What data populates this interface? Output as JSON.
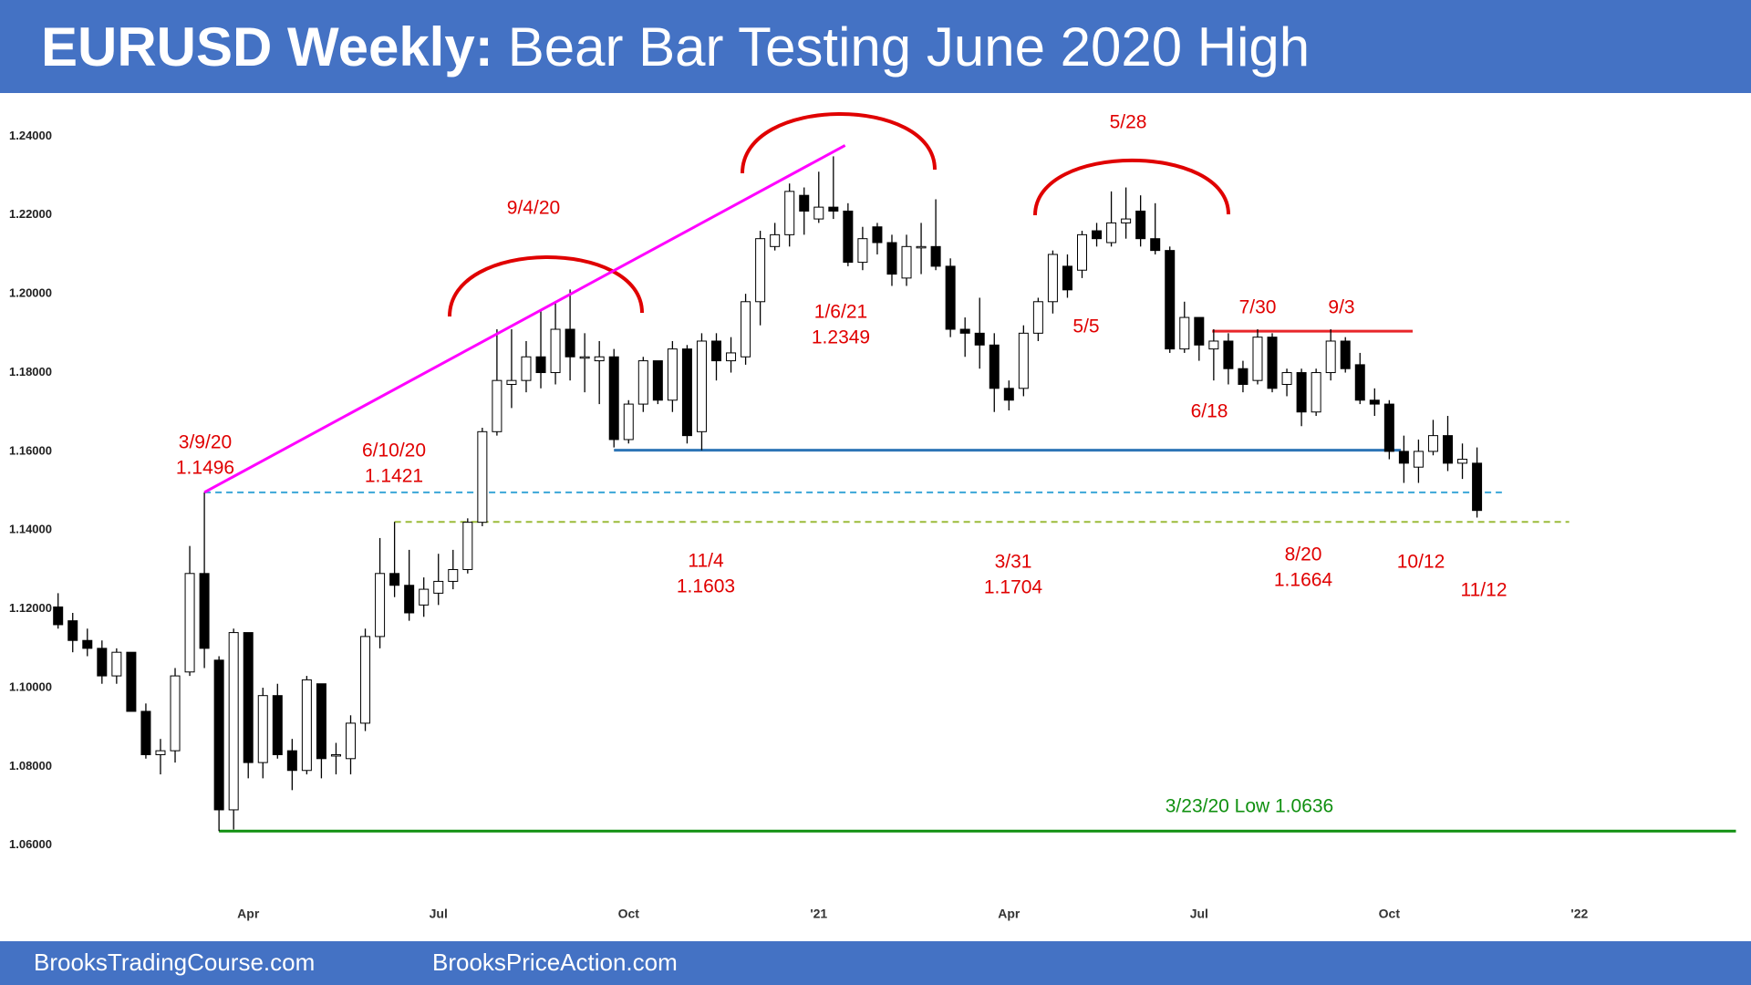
{
  "chart_data": {
    "type": "candlestick",
    "title": [
      "EURUSD Weekly:",
      "Bear Bar Testing June 2020 High"
    ],
    "footer": [
      "BrooksTradingCourse.com",
      "BrooksPriceAction.com"
    ],
    "categories": [
      null,
      null,
      null,
      null,
      null,
      null,
      null,
      null,
      null,
      null,
      null,
      null,
      null,
      "Apr",
      null,
      null,
      null,
      null,
      null,
      null,
      null,
      null,
      null,
      null,
      null,
      null,
      "Jul",
      null,
      null,
      null,
      null,
      null,
      null,
      null,
      null,
      null,
      null,
      null,
      null,
      "Oct",
      null,
      null,
      null,
      null,
      null,
      null,
      null,
      null,
      null,
      null,
      null,
      null,
      "'21",
      null,
      null,
      null,
      null,
      null,
      null,
      null,
      null,
      null,
      null,
      null,
      null,
      "Apr",
      null,
      null,
      null,
      null,
      null,
      null,
      null,
      null,
      null,
      null,
      null,
      null,
      "Jul",
      null,
      null,
      null,
      null,
      null,
      null,
      null,
      null,
      null,
      null,
      null,
      null,
      "Oct",
      null,
      null,
      null,
      null,
      null,
      null,
      null,
      null,
      null,
      null,
      null,
      null,
      "'22",
      null,
      null,
      null,
      null,
      null,
      null,
      null,
      null,
      null,
      null
    ],
    "open": [
      1.1205,
      1.117,
      1.112,
      1.11,
      1.103,
      1.109,
      1.094,
      1.083,
      1.084,
      1.104,
      1.129,
      1.107,
      1.069,
      1.114,
      1.081,
      1.098,
      1.084,
      1.079,
      1.101,
      1.083,
      1.082,
      1.091,
      1.113,
      1.129,
      1.126,
      1.121,
      1.124,
      1.127,
      1.13,
      1.142,
      1.165,
      1.177,
      1.178,
      1.184,
      1.18,
      1.191,
      1.184,
      1.183,
      1.184,
      1.163,
      1.172,
      1.183,
      1.173,
      1.186,
      1.165,
      1.188,
      1.183,
      1.184,
      1.198,
      1.212,
      1.215,
      1.225,
      1.219,
      1.222,
      1.221,
      1.208,
      1.217,
      1.213,
      1.204,
      1.212,
      1.212,
      1.207,
      1.191,
      1.19,
      1.187,
      1.176,
      1.176,
      1.19,
      1.198,
      1.207,
      1.206,
      1.216,
      1.213,
      1.218,
      1.221,
      1.214,
      1.211,
      1.186,
      1.194,
      1.186,
      1.188,
      1.181,
      1.178,
      1.189,
      1.177,
      1.18,
      1.17,
      1.18,
      1.188,
      1.182,
      1.173,
      1.172,
      1.16,
      1.156,
      1.16,
      1.164,
      1.157,
      1.157,
      null,
      null,
      null,
      null,
      null,
      null,
      null,
      null,
      null,
      null,
      null,
      null,
      null,
      null,
      null,
      null,
      null
    ],
    "high": [
      1.124,
      1.119,
      1.115,
      1.112,
      1.11,
      1.109,
      1.096,
      1.087,
      1.105,
      1.136,
      1.1496,
      1.108,
      1.115,
      1.114,
      1.1,
      1.101,
      1.087,
      1.103,
      1.101,
      1.086,
      1.093,
      1.115,
      1.138,
      1.1421,
      1.135,
      1.128,
      1.134,
      1.135,
      1.143,
      1.166,
      1.191,
      1.191,
      1.188,
      1.196,
      1.198,
      1.2011,
      1.19,
      1.188,
      1.186,
      1.173,
      1.184,
      1.183,
      1.188,
      1.187,
      1.19,
      1.19,
      1.189,
      1.2,
      1.216,
      1.218,
      1.228,
      1.227,
      1.231,
      1.2349,
      1.223,
      1.217,
      1.218,
      1.215,
      1.215,
      1.218,
      1.224,
      1.209,
      1.194,
      1.199,
      1.19,
      1.178,
      1.192,
      1.199,
      1.211,
      1.21,
      1.216,
      1.218,
      1.226,
      1.227,
      1.225,
      1.223,
      1.212,
      1.198,
      1.194,
      1.191,
      1.19,
      1.183,
      1.191,
      1.19,
      1.181,
      1.181,
      1.181,
      1.191,
      1.189,
      1.185,
      1.176,
      1.173,
      1.164,
      1.163,
      1.168,
      1.169,
      1.162,
      1.161,
      null,
      null,
      null,
      null,
      null,
      null,
      null,
      null,
      null,
      null,
      null,
      null,
      null,
      null,
      null,
      null,
      null
    ],
    "low": [
      1.115,
      1.109,
      1.108,
      1.101,
      1.101,
      1.094,
      1.082,
      1.078,
      1.081,
      1.103,
      1.105,
      1.0636,
      1.064,
      1.077,
      1.077,
      1.082,
      1.074,
      1.078,
      1.077,
      1.078,
      1.078,
      1.089,
      1.11,
      1.123,
      1.117,
      1.118,
      1.121,
      1.125,
      1.129,
      1.141,
      1.164,
      1.171,
      1.175,
      1.176,
      1.177,
      1.178,
      1.175,
      1.172,
      1.161,
      1.162,
      1.17,
      1.172,
      1.17,
      1.162,
      1.1603,
      1.178,
      1.18,
      1.182,
      1.192,
      1.211,
      1.212,
      1.215,
      1.218,
      1.219,
      1.207,
      1.206,
      1.21,
      1.202,
      1.202,
      1.205,
      1.206,
      1.189,
      1.184,
      1.181,
      1.17,
      1.1704,
      1.174,
      1.188,
      1.195,
      1.199,
      1.204,
      1.212,
      1.212,
      1.214,
      1.212,
      1.21,
      1.185,
      1.185,
      1.183,
      1.178,
      1.177,
      1.175,
      1.177,
      1.175,
      1.174,
      1.1664,
      1.169,
      1.178,
      1.18,
      1.172,
      1.169,
      1.158,
      1.152,
      1.152,
      1.159,
      1.155,
      1.153,
      1.1432,
      null,
      null,
      null,
      null,
      null,
      null,
      null,
      null,
      null,
      null,
      null,
      null,
      null,
      null,
      null,
      null,
      null
    ],
    "close": [
      1.116,
      1.112,
      1.11,
      1.103,
      1.109,
      1.094,
      1.083,
      1.084,
      1.103,
      1.129,
      1.11,
      1.069,
      1.114,
      1.081,
      1.098,
      1.083,
      1.079,
      1.102,
      1.082,
      1.083,
      1.091,
      1.113,
      1.129,
      1.126,
      1.119,
      1.125,
      1.127,
      1.13,
      1.142,
      1.165,
      1.178,
      1.178,
      1.184,
      1.18,
      1.191,
      1.184,
      1.184,
      1.184,
      1.163,
      1.172,
      1.183,
      1.173,
      1.186,
      1.164,
      1.188,
      1.183,
      1.185,
      1.198,
      1.214,
      1.215,
      1.226,
      1.221,
      1.222,
      1.221,
      1.208,
      1.214,
      1.213,
      1.205,
      1.212,
      1.212,
      1.207,
      1.191,
      1.19,
      1.187,
      1.176,
      1.173,
      1.19,
      1.198,
      1.21,
      1.201,
      1.215,
      1.214,
      1.218,
      1.219,
      1.214,
      1.211,
      1.186,
      1.194,
      1.187,
      1.188,
      1.181,
      1.177,
      1.189,
      1.176,
      1.18,
      1.17,
      1.18,
      1.188,
      1.181,
      1.173,
      1.172,
      1.16,
      1.157,
      1.16,
      1.164,
      1.157,
      1.158,
      1.145,
      null,
      null,
      null,
      null,
      null,
      null,
      null,
      null,
      null,
      null,
      null,
      null,
      null,
      null,
      null,
      null,
      null
    ],
    "ylim": [
      1.05,
      1.25
    ],
    "yticks": [
      {
        "value": 1.06,
        "label": "1.06000"
      },
      {
        "value": 1.08,
        "label": "1.08000"
      },
      {
        "value": 1.1,
        "label": "1.10000"
      },
      {
        "value": 1.12,
        "label": "1.12000"
      },
      {
        "value": 1.14,
        "label": "1.14000"
      },
      {
        "value": 1.16,
        "label": "1.16000"
      },
      {
        "value": 1.18,
        "label": "1.18000"
      },
      {
        "value": 1.2,
        "label": "1.20000"
      },
      {
        "value": 1.22,
        "label": "1.22000"
      },
      {
        "value": 1.24,
        "label": "1.24000"
      }
    ],
    "up_color": "#ffffff",
    "down_color": "#000000",
    "trendline_color": "#ff00ff",
    "levels": [
      {
        "value": 1.1603,
        "color": "#2e75b6",
        "style": "solid"
      },
      {
        "value": 1.1496,
        "color": "#3aa6d8",
        "style": "dashed"
      },
      {
        "value": 1.1421,
        "color": "#9bbb3a",
        "style": "dashed"
      },
      {
        "value": 1.0636,
        "color": "#109010",
        "style": "solid"
      },
      {
        "value": 1.1905,
        "color": "#e8262a",
        "style": "solid"
      }
    ],
    "annotations": [
      {
        "lines": [
          "9/4/20"
        ],
        "color": "#e00000"
      },
      {
        "lines": [
          "3/9/20",
          "1.1496"
        ],
        "color": "#e00000"
      },
      {
        "lines": [
          "6/10/20",
          "1.1421"
        ],
        "color": "#e00000"
      },
      {
        "lines": [
          "1/6/21",
          "1.2349"
        ],
        "color": "#e00000"
      },
      {
        "lines": [
          "5/28"
        ],
        "color": "#e00000"
      },
      {
        "lines": [
          "5/5"
        ],
        "color": "#e00000"
      },
      {
        "lines": [
          "7/30"
        ],
        "color": "#e00000"
      },
      {
        "lines": [
          "9/3"
        ],
        "color": "#e00000"
      },
      {
        "lines": [
          "6/18"
        ],
        "color": "#e00000"
      },
      {
        "lines": [
          "11/4",
          "1.1603"
        ],
        "color": "#e00000"
      },
      {
        "lines": [
          "3/31",
          "1.1704"
        ],
        "color": "#e00000"
      },
      {
        "lines": [
          "8/20",
          "1.1664"
        ],
        "color": "#e00000"
      },
      {
        "lines": [
          "10/12"
        ],
        "color": "#e00000"
      },
      {
        "lines": [
          "11/12"
        ],
        "color": "#e00000"
      },
      {
        "lines": [
          "3/23/20 Low 1.0636"
        ],
        "color": "#109010"
      }
    ]
  }
}
